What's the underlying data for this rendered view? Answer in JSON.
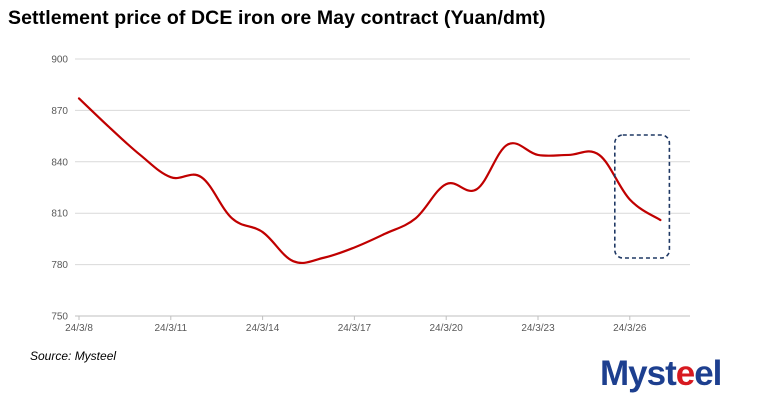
{
  "chart_data": {
    "type": "line",
    "title": "Settlement price of DCE iron ore May contract (Yuan/dmt)",
    "xlabel": "",
    "ylabel": "",
    "ylim": [
      750,
      900
    ],
    "yticks": [
      900,
      870,
      840,
      810,
      780,
      750
    ],
    "xticks": [
      "24/3/8",
      "24/3/11",
      "24/3/14",
      "24/3/17",
      "24/3/20",
      "24/3/23",
      "24/3/26"
    ],
    "x": [
      "24/3/8",
      "24/3/9",
      "24/3/10",
      "24/3/11",
      "24/3/12",
      "24/3/13",
      "24/3/14",
      "24/3/15",
      "24/3/16",
      "24/3/17",
      "24/3/18",
      "24/3/19",
      "24/3/20",
      "24/3/21",
      "24/3/22",
      "24/3/23",
      "24/3/24",
      "24/3/25",
      "24/3/26",
      "24/3/27"
    ],
    "series": [
      {
        "values": [
          877,
          860,
          844,
          831,
          831,
          807,
          799,
          782,
          784,
          790,
          798,
          807,
          827,
          824,
          850,
          844,
          844,
          844,
          818,
          806
        ],
        "color": "#c00000"
      }
    ],
    "grid": "horizontal",
    "legend": "none",
    "annotation": "dashed box highlighting 24/3/26 to 24/3/27"
  },
  "footer": {
    "source": "Source: Mysteel",
    "logo_text": "Mysteel"
  }
}
